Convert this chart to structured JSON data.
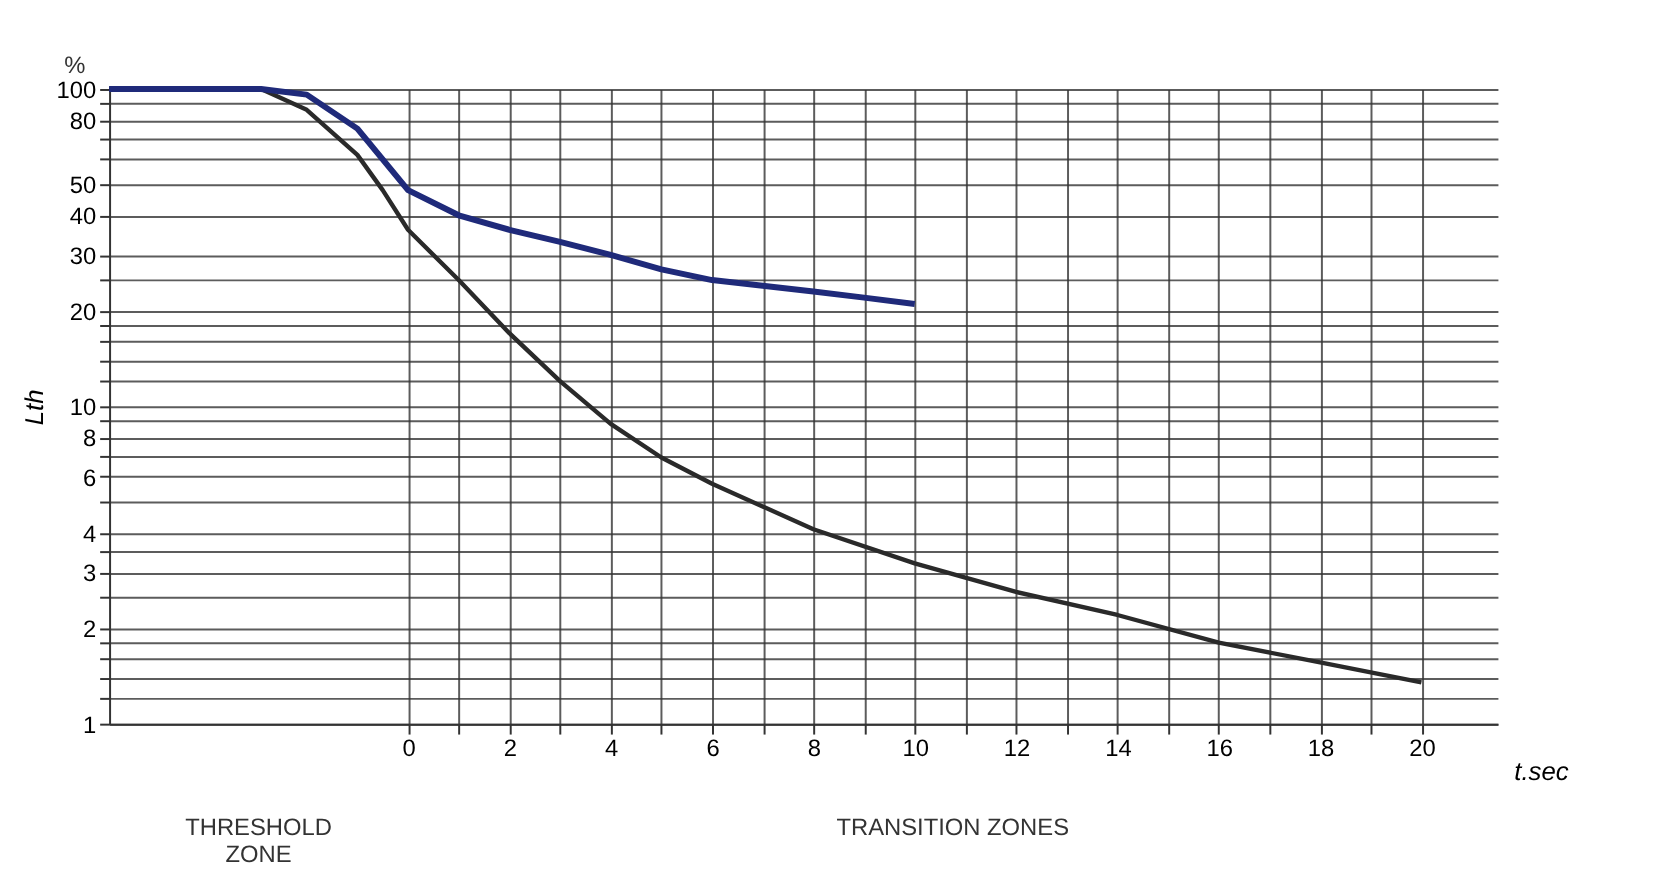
{
  "chart_data": {
    "type": "line",
    "xlabel": "t.sec",
    "ylabel": "Lth",
    "annotations": [
      "%",
      "THRESHOLD ZONE",
      "TRANSITION ZONES"
    ],
    "log": "y",
    "grid": true,
    "legend": false,
    "marker": "none",
    "line_style": "solid",
    "xlim": [
      -5.9,
      21.5
    ],
    "ylim": [
      1,
      100
    ],
    "xticks": [
      0,
      {
        "value": 1,
        "label": null
      },
      2,
      {
        "value": 3,
        "label": null
      },
      4,
      {
        "value": 5,
        "label": null
      },
      6,
      {
        "value": 7,
        "label": null
      },
      8,
      {
        "value": 9,
        "label": null
      },
      10,
      {
        "value": 11,
        "label": null
      },
      12,
      {
        "value": 13,
        "label": null
      },
      14,
      {
        "value": 15,
        "label": null
      },
      16,
      {
        "value": 17,
        "label": null
      },
      18,
      {
        "value": 19,
        "label": null
      },
      20
    ],
    "yticks": [
      1,
      {
        "value": 1.2,
        "label": null
      },
      {
        "value": 1.4,
        "label": null
      },
      {
        "value": 1.6,
        "label": null
      },
      {
        "value": 1.8,
        "label": null
      },
      2,
      {
        "value": 2.5,
        "label": null
      },
      3,
      {
        "value": 3.5,
        "label": null
      },
      4,
      {
        "value": 5,
        "label": null
      },
      6,
      {
        "value": 7,
        "label": null
      },
      8,
      {
        "value": 9,
        "label": null
      },
      10,
      {
        "value": 12,
        "label": null
      },
      {
        "value": 14,
        "label": null
      },
      {
        "value": 16,
        "label": null
      },
      {
        "value": 18,
        "label": null
      },
      20,
      {
        "value": 25,
        "label": null
      },
      30,
      40,
      50,
      {
        "value": 60,
        "label": null
      },
      {
        "value": 70,
        "label": null
      },
      80,
      {
        "value": 90,
        "label": null
      },
      100
    ],
    "series": [
      {
        "color": "#2a2a2a",
        "x": [
          -5.9,
          -2.9,
          -2,
          -1,
          -0.5,
          0,
          1,
          2,
          3,
          4,
          5,
          6,
          8,
          10,
          12,
          14,
          16,
          18,
          20
        ],
        "values": [
          100,
          100,
          86,
          62,
          48,
          36,
          25,
          17,
          12,
          8.8,
          6.9,
          5.7,
          4.1,
          3.2,
          2.6,
          2.2,
          1.8,
          1.56,
          1.35
        ]
      },
      {
        "color": "#1f2a7a",
        "x": [
          -5.9,
          -2.9,
          -2,
          -1,
          0,
          1,
          2,
          3,
          4,
          5,
          6,
          7,
          8,
          9,
          10
        ],
        "values": [
          100,
          100,
          96,
          75,
          48,
          40,
          36,
          33,
          30,
          27,
          25,
          24,
          23,
          22,
          21
        ]
      }
    ]
  }
}
